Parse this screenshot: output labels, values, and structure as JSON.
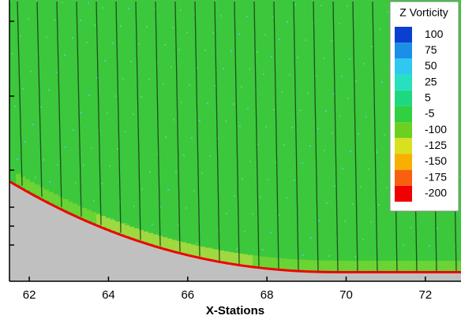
{
  "chart_data": {
    "type": "contour",
    "x_label": "X-Stations",
    "xlim": [
      61.5,
      72.9
    ],
    "xticks": [
      62,
      64,
      66,
      68,
      70,
      72
    ],
    "legend": {
      "title": "Z Vorticity",
      "levels": [
        {
          "value": 100,
          "color": "#0a3fd0"
        },
        {
          "value": 75,
          "color": "#1a8fe8"
        },
        {
          "value": 50,
          "color": "#2ec8f0"
        },
        {
          "value": 25,
          "color": "#26e0c0"
        },
        {
          "value": 5,
          "color": "#1ed880"
        },
        {
          "value": -5,
          "color": "#30d040"
        },
        {
          "value": -100,
          "color": "#6cd020"
        },
        {
          "value": -125,
          "color": "#d8e020"
        },
        {
          "value": -150,
          "color": "#f8b000"
        },
        {
          "value": -175,
          "color": "#f86010"
        },
        {
          "value": -200,
          "color": "#f00000"
        }
      ]
    }
  }
}
